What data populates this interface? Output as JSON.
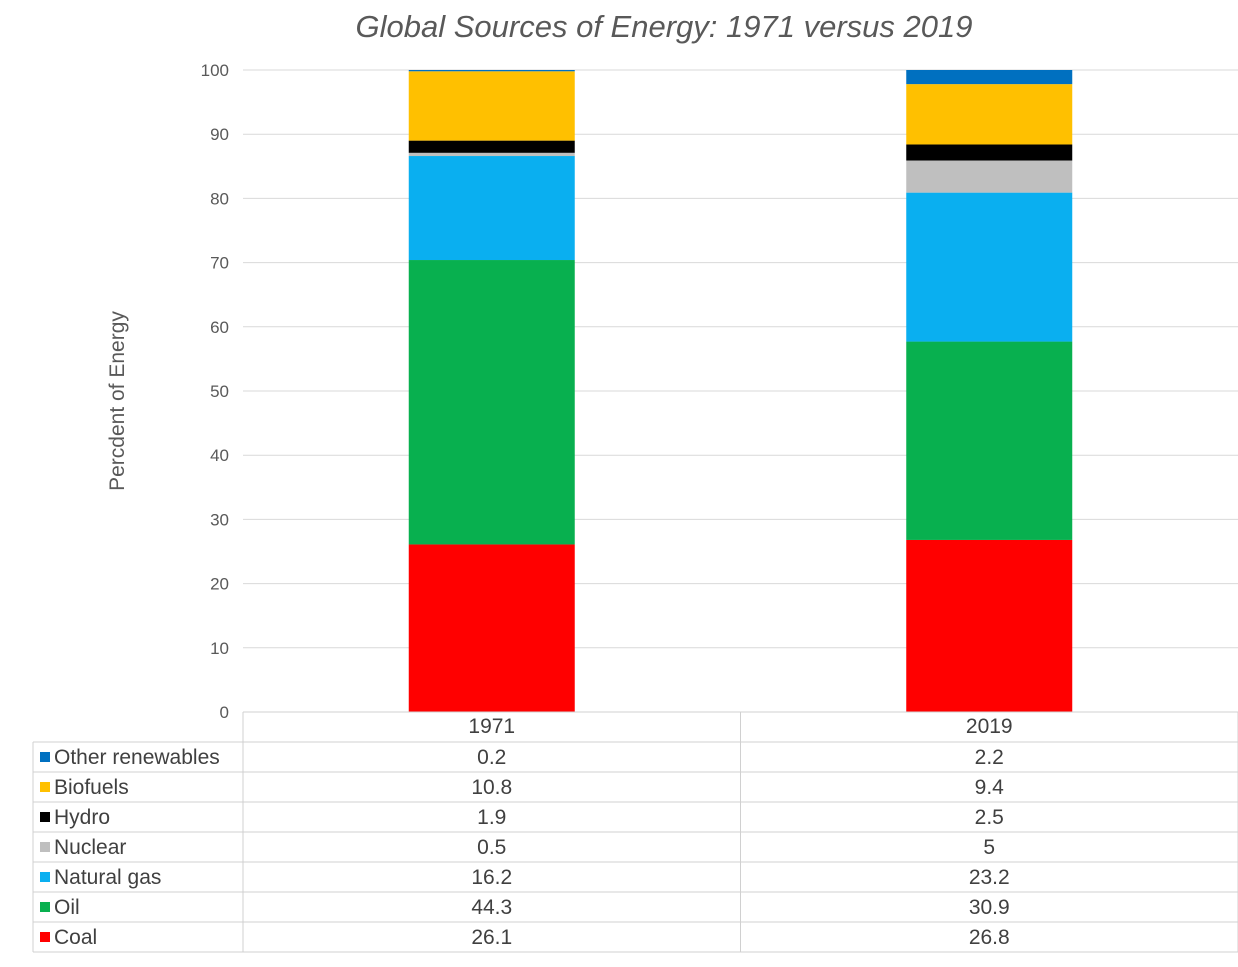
{
  "chart_data": {
    "type": "bar",
    "stacked": true,
    "title": "Global Sources of Energy: 1971 versus 2019",
    "xlabel": "",
    "ylabel": "Percdent of Energy",
    "ylim": [
      0,
      100
    ],
    "yticks": [
      0,
      10,
      20,
      30,
      40,
      50,
      60,
      70,
      80,
      90,
      100
    ],
    "grid": true,
    "legend": "data-table-left",
    "categories": [
      "1971",
      "2019"
    ],
    "series": [
      {
        "name": "Coal",
        "color": "#ff0000",
        "values": [
          26.1,
          26.8
        ],
        "labels": [
          "26.1",
          "26.8"
        ]
      },
      {
        "name": "Oil",
        "color": "#08b04f",
        "values": [
          44.3,
          30.9
        ],
        "labels": [
          "44.3",
          "30.9"
        ]
      },
      {
        "name": "Natural gas",
        "color": "#0aaff0",
        "values": [
          16.2,
          23.2
        ],
        "labels": [
          "16.2",
          "23.2"
        ]
      },
      {
        "name": "Nuclear",
        "color": "#bfbfbf",
        "values": [
          0.5,
          5
        ],
        "labels": [
          "0.5",
          "5"
        ]
      },
      {
        "name": "Hydro",
        "color": "#000000",
        "values": [
          1.9,
          2.5
        ],
        "labels": [
          "1.9",
          "2.5"
        ]
      },
      {
        "name": "Biofuels",
        "color": "#ffc000",
        "values": [
          10.8,
          9.4
        ],
        "labels": [
          "10.8",
          "9.4"
        ]
      },
      {
        "name": "Other renewables",
        "color": "#0070c0",
        "values": [
          0.2,
          2.2
        ],
        "labels": [
          "0.2",
          "2.2"
        ]
      }
    ]
  }
}
